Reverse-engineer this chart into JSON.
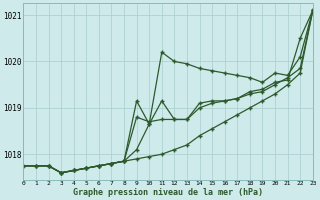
{
  "title": "Graphe pression niveau de la mer (hPa)",
  "background_color": "#ceeaea",
  "grid_color": "#aacccc",
  "line_color": "#2d5a2d",
  "xlim": [
    0,
    23
  ],
  "ylim": [
    1017.45,
    1021.25
  ],
  "yticks": [
    1018,
    1019,
    1020,
    1021
  ],
  "xticks": [
    0,
    1,
    2,
    3,
    4,
    5,
    6,
    7,
    8,
    9,
    10,
    11,
    12,
    13,
    14,
    15,
    16,
    17,
    18,
    19,
    20,
    21,
    22,
    23
  ],
  "line1_x": [
    0,
    1,
    2,
    3,
    4,
    5,
    6,
    7,
    8,
    9,
    10,
    11,
    12,
    13,
    14,
    15,
    16,
    17,
    18,
    19,
    20,
    21,
    22,
    23
  ],
  "line1_y": [
    1017.75,
    1017.75,
    1017.75,
    1017.6,
    1017.65,
    1017.7,
    1017.75,
    1017.8,
    1017.85,
    1017.9,
    1017.95,
    1018.0,
    1018.1,
    1018.2,
    1018.4,
    1018.55,
    1018.7,
    1018.85,
    1019.0,
    1019.15,
    1019.3,
    1019.5,
    1019.75,
    1021.1
  ],
  "line2_x": [
    0,
    1,
    2,
    3,
    4,
    5,
    6,
    7,
    8,
    9,
    10,
    11,
    12,
    13,
    14,
    15,
    16,
    17,
    18,
    19,
    20,
    21,
    22,
    23
  ],
  "line2_y": [
    1017.75,
    1017.75,
    1017.75,
    1017.6,
    1017.65,
    1017.7,
    1017.75,
    1017.8,
    1017.85,
    1018.1,
    1018.65,
    1019.15,
    1018.75,
    1018.75,
    1019.0,
    1019.1,
    1019.15,
    1019.2,
    1019.3,
    1019.35,
    1019.5,
    1019.65,
    1019.85,
    1021.1
  ],
  "line3_x": [
    0,
    1,
    2,
    3,
    4,
    5,
    6,
    7,
    8,
    9,
    10,
    11,
    12,
    13,
    14,
    15,
    16,
    17,
    18,
    19,
    20,
    21,
    22,
    23
  ],
  "line3_y": [
    1017.75,
    1017.75,
    1017.75,
    1017.6,
    1017.65,
    1017.7,
    1017.75,
    1017.8,
    1017.85,
    1019.15,
    1018.65,
    1020.2,
    1020.0,
    1019.95,
    1019.85,
    1019.8,
    1019.75,
    1019.7,
    1019.65,
    1019.55,
    1019.75,
    1019.7,
    1020.1,
    1021.1
  ],
  "line4_x": [
    0,
    2,
    3,
    4,
    5,
    6,
    7,
    8,
    9,
    10,
    11,
    12,
    13,
    14,
    15,
    16,
    17,
    18,
    19,
    20,
    21,
    22,
    23
  ],
  "line4_y": [
    1017.75,
    1017.75,
    1017.6,
    1017.65,
    1017.7,
    1017.75,
    1017.8,
    1017.85,
    1018.8,
    1018.7,
    1018.75,
    1018.75,
    1018.75,
    1019.1,
    1019.15,
    1019.15,
    1019.2,
    1019.35,
    1019.4,
    1019.55,
    1019.6,
    1020.5,
    1021.1
  ]
}
